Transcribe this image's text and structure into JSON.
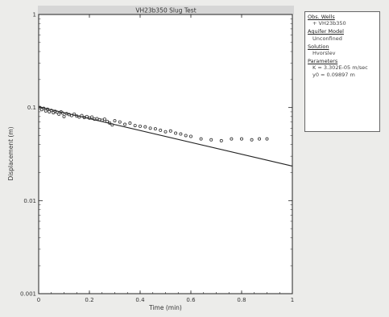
{
  "chart_data": {
    "type": "scatter",
    "title": "VH23b350 Slug Test",
    "xlabel": "Time (min)",
    "ylabel": "Displacement (m)",
    "x_scale": "linear",
    "y_scale": "log",
    "xlim": [
      0,
      1
    ],
    "ylim": [
      0.001,
      1
    ],
    "x_ticks": [
      "0",
      "0.2",
      "0.4",
      "0.6",
      "0.8",
      "1"
    ],
    "y_ticks": [
      "0.001",
      "0.01",
      "0.1",
      "1"
    ],
    "grid": false,
    "series": [
      {
        "name": "VH23b350",
        "marker": "circle",
        "points": [
          [
            0.005,
            0.1
          ],
          [
            0.012,
            0.095
          ],
          [
            0.02,
            0.098
          ],
          [
            0.028,
            0.092
          ],
          [
            0.035,
            0.096
          ],
          [
            0.042,
            0.09
          ],
          [
            0.05,
            0.093
          ],
          [
            0.058,
            0.088
          ],
          [
            0.065,
            0.091
          ],
          [
            0.072,
            0.089
          ],
          [
            0.08,
            0.085
          ],
          [
            0.088,
            0.09
          ],
          [
            0.095,
            0.087
          ],
          [
            0.1,
            0.08
          ],
          [
            0.11,
            0.086
          ],
          [
            0.12,
            0.084
          ],
          [
            0.13,
            0.082
          ],
          [
            0.14,
            0.085
          ],
          [
            0.15,
            0.081
          ],
          [
            0.16,
            0.079
          ],
          [
            0.17,
            0.082
          ],
          [
            0.18,
            0.078
          ],
          [
            0.19,
            0.08
          ],
          [
            0.2,
            0.077
          ],
          [
            0.21,
            0.079
          ],
          [
            0.22,
            0.075
          ],
          [
            0.23,
            0.076
          ],
          [
            0.24,
            0.074
          ],
          [
            0.25,
            0.073
          ],
          [
            0.26,
            0.075
          ],
          [
            0.27,
            0.071
          ],
          [
            0.28,
            0.068
          ],
          [
            0.29,
            0.065
          ],
          [
            0.3,
            0.072
          ],
          [
            0.32,
            0.07
          ],
          [
            0.34,
            0.066
          ],
          [
            0.36,
            0.068
          ],
          [
            0.38,
            0.064
          ],
          [
            0.4,
            0.063
          ],
          [
            0.42,
            0.062
          ],
          [
            0.44,
            0.06
          ],
          [
            0.46,
            0.059
          ],
          [
            0.48,
            0.057
          ],
          [
            0.5,
            0.055
          ],
          [
            0.52,
            0.056
          ],
          [
            0.54,
            0.053
          ],
          [
            0.56,
            0.052
          ],
          [
            0.58,
            0.05
          ],
          [
            0.6,
            0.049
          ],
          [
            0.64,
            0.046
          ],
          [
            0.68,
            0.045
          ],
          [
            0.72,
            0.044
          ],
          [
            0.76,
            0.046
          ],
          [
            0.8,
            0.046
          ],
          [
            0.84,
            0.045
          ],
          [
            0.87,
            0.046
          ],
          [
            0.9,
            0.046
          ]
        ]
      }
    ],
    "fit_line": {
      "name": "Hvorslev fit",
      "points": [
        [
          0,
          0.102
        ],
        [
          1,
          0.0235
        ]
      ]
    }
  },
  "legend": {
    "sections": [
      {
        "heading": "Obs. Wells",
        "values": [
          "+ VH23b350"
        ]
      },
      {
        "heading": "Aquifer Model",
        "values": [
          "Unconfined"
        ]
      },
      {
        "heading": "Solution",
        "values": [
          "Hvorslev"
        ]
      },
      {
        "heading": "Parameters",
        "values": [
          "K  = 3.302E-05 m/sec",
          "y0 = 0.09897 m"
        ]
      }
    ]
  },
  "colors": {
    "background": "#ececea",
    "plot_area": "#ffffff",
    "axis": "#222222",
    "marker": "#333333",
    "title_bar": "#d6d6d6"
  }
}
